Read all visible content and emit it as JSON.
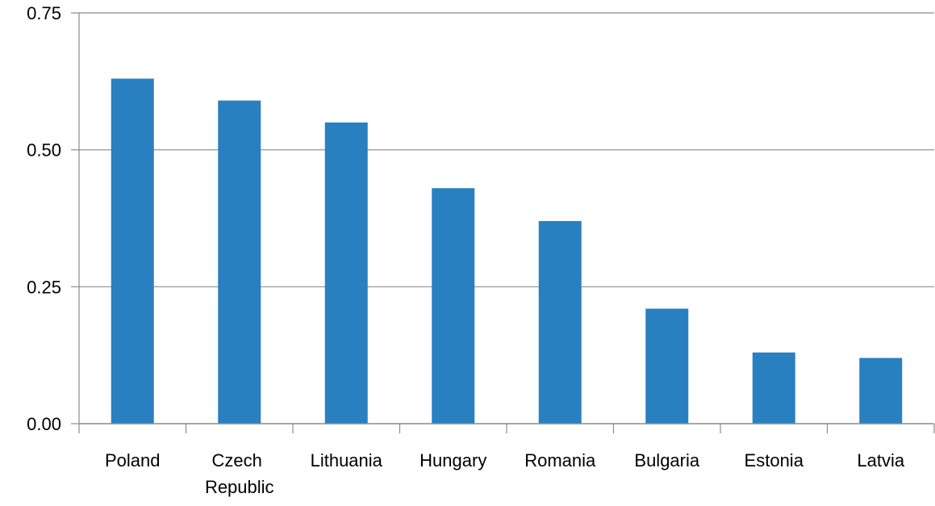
{
  "chart_data": {
    "type": "bar",
    "categories": [
      "Poland",
      "Czech Republic",
      "Lithuania",
      "Hungary",
      "Romania",
      "Bulgaria",
      "Estonia",
      "Latvia"
    ],
    "values": [
      0.63,
      0.59,
      0.55,
      0.43,
      0.37,
      0.21,
      0.13,
      0.12
    ],
    "color": "#2980c0",
    "ylim": [
      0,
      0.75
    ],
    "yticks": [
      {
        "value": 0,
        "label": "0.00"
      },
      {
        "value": 0.25,
        "label": "0.25"
      },
      {
        "value": 0.5,
        "label": "0.50"
      },
      {
        "value": 0.75,
        "label": "0.75"
      }
    ],
    "grid": true
  }
}
